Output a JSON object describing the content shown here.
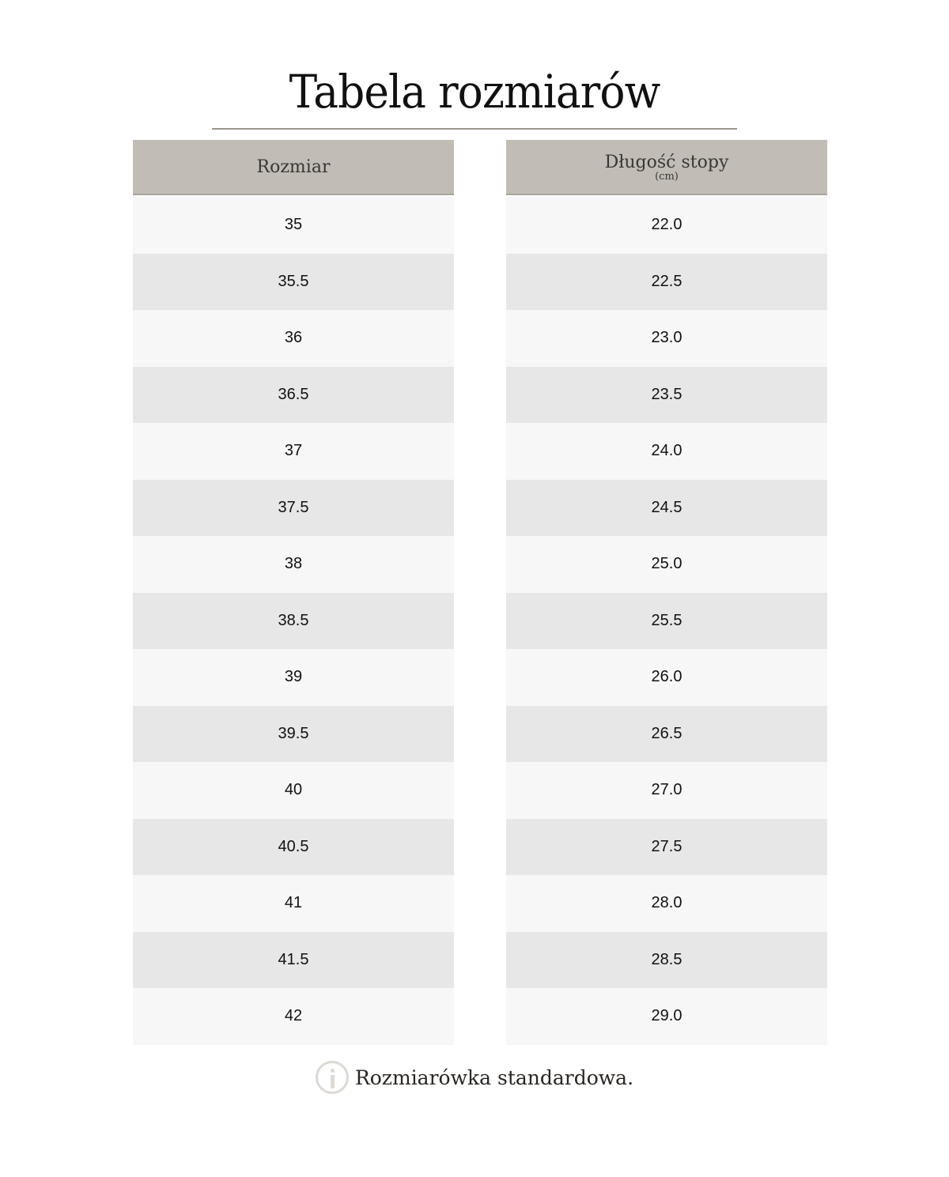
{
  "title": "Tabela rozmiarów",
  "columns": [
    {
      "header": "Rozmiar",
      "sub": "",
      "values": [
        "35",
        "35.5",
        "36",
        "36.5",
        "37",
        "37.5",
        "38",
        "38.5",
        "39",
        "39.5",
        "40",
        "40.5",
        "41",
        "41.5",
        "42"
      ]
    },
    {
      "header": "Długość stopy",
      "sub": "(cm)",
      "values": [
        "22.0",
        "22.5",
        "23.0",
        "23.5",
        "24.0",
        "24.5",
        "25.0",
        "25.5",
        "26.0",
        "26.5",
        "27.0",
        "27.5",
        "28.0",
        "28.5",
        "29.0"
      ]
    }
  ],
  "note": {
    "icon": "info-icon",
    "text": "Rozmiarówka standardowa."
  },
  "colors": {
    "header": "#c1bdb6",
    "row_light": "#f7f7f7",
    "row_dark": "#e7e7e7"
  }
}
